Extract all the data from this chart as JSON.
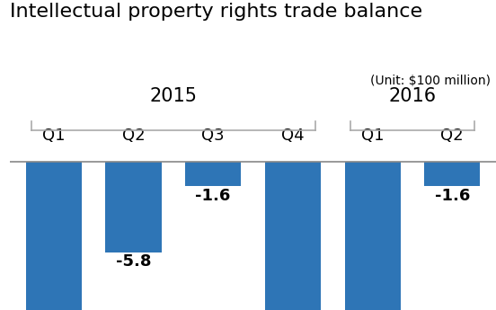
{
  "title": "Intellectual property rights trade balance",
  "unit_label": "(Unit: $100 million)",
  "categories": [
    "Q1",
    "Q2",
    "Q3",
    "Q4",
    "Q1",
    "Q2"
  ],
  "year_labels": [
    "2015",
    "2016"
  ],
  "values": [
    -9.5,
    -5.8,
    -1.6,
    -9.5,
    -9.5,
    -1.6
  ],
  "bar_color": "#2e75b6",
  "bar_labels": [
    null,
    "-5.8",
    "-1.6",
    null,
    null,
    "-1.6"
  ],
  "label_fontsize": 13,
  "title_fontsize": 16,
  "unit_fontsize": 10,
  "year_fontsize": 15,
  "tick_fontsize": 13,
  "ylim": [
    -9.5,
    0.8
  ],
  "background_color": "#ffffff",
  "bracket_color": "#aaaaaa",
  "bracket_lw": 1.2
}
